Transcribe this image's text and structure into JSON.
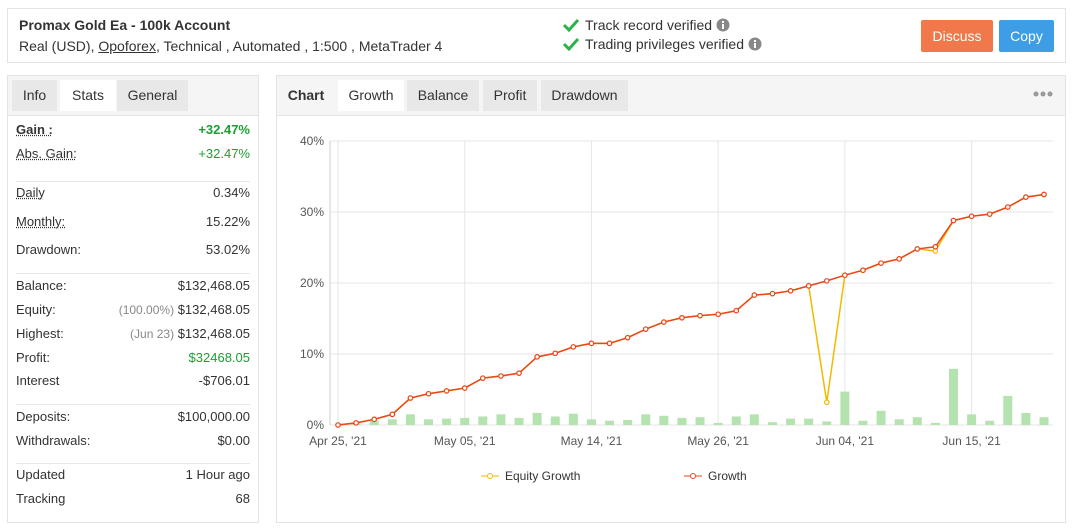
{
  "header": {
    "title": "Promax Gold Ea - 100k Account",
    "account_prefix": "Real (USD), ",
    "broker": "Opoforex",
    "account_suffix": ", Technical , Automated , 1:500 , MetaTrader 4",
    "verified": [
      "Track record verified",
      "Trading privileges verified"
    ],
    "buttons": [
      "Discuss",
      "Copy"
    ]
  },
  "info_tabs": [
    "Info",
    "Stats",
    "General"
  ],
  "stats": [
    [
      {
        "label": "Gain :",
        "value": "+32.47%"
      },
      {
        "label": "Abs. Gain:",
        "value": "+32.47%"
      }
    ],
    [
      {
        "label": "Daily",
        "value": "0.34%"
      },
      {
        "label": "Monthly:",
        "value": "15.22%"
      },
      {
        "label": "Drawdown:",
        "value": "53.02%"
      }
    ],
    [
      {
        "label": "Balance:",
        "value": "$132,468.05"
      },
      {
        "label": "Equity:",
        "note": "(100.00%)",
        "value": "$132,468.05"
      },
      {
        "label": "Highest:",
        "note": "(Jun 23)",
        "value": "$132,468.05"
      },
      {
        "label": "Profit:",
        "value": "$32468.05"
      },
      {
        "label": "Interest",
        "value": "-$706.01"
      }
    ],
    [
      {
        "label": "Deposits:",
        "value": "$100,000.00"
      },
      {
        "label": "Withdrawals:",
        "value": "$0.00"
      }
    ],
    [
      {
        "label": "Updated",
        "value": "1 Hour ago"
      },
      {
        "label": "Tracking",
        "value": "68"
      }
    ]
  ],
  "chart_tabs": [
    "Chart",
    "Growth",
    "Balance",
    "Profit",
    "Drawdown"
  ],
  "chart_data": {
    "type": "line",
    "categories": [
      "Apr 25, '21",
      null,
      null,
      null,
      null,
      null,
      null,
      "May 05, '21",
      null,
      null,
      null,
      null,
      null,
      null,
      "May 14, '21",
      null,
      null,
      null,
      null,
      null,
      null,
      "May 26, '21",
      null,
      null,
      null,
      null,
      null,
      null,
      "Jun 04, '21",
      null,
      null,
      null,
      null,
      null,
      null,
      "Jun 15, '21",
      null,
      null,
      null,
      null
    ],
    "series": [
      {
        "name": "Equity Growth",
        "color": "#f5b800",
        "values": [
          0,
          0.3,
          0.8,
          1.5,
          3.8,
          4.4,
          4.8,
          5.2,
          6.6,
          6.9,
          7.3,
          9.6,
          10.1,
          11.0,
          11.5,
          11.5,
          12.3,
          13.5,
          14.5,
          15.1,
          15.4,
          15.6,
          16.1,
          18.3,
          18.5,
          18.9,
          19.6,
          3.2,
          21.1,
          21.8,
          22.8,
          23.4,
          24.8,
          24.5,
          28.8,
          29.4,
          29.7,
          30.7,
          32.1,
          32.47
        ]
      },
      {
        "name": "Growth",
        "color": "#e8461e",
        "values": [
          0,
          0.3,
          0.8,
          1.5,
          3.8,
          4.4,
          4.8,
          5.2,
          6.6,
          6.9,
          7.3,
          9.6,
          10.1,
          11.0,
          11.5,
          11.5,
          12.3,
          13.5,
          14.5,
          15.1,
          15.4,
          15.6,
          16.1,
          18.3,
          18.5,
          18.9,
          19.6,
          20.3,
          21.1,
          21.8,
          22.8,
          23.4,
          24.8,
          25.1,
          28.8,
          29.4,
          29.7,
          30.7,
          32.1,
          32.47
        ]
      }
    ],
    "bars": {
      "color": "#b5e3b0",
      "values": [
        0,
        0.3,
        0.6,
        0.8,
        1.5,
        0.8,
        0.9,
        1.0,
        1.2,
        1.5,
        1.0,
        1.7,
        1.2,
        1.6,
        0.8,
        0.6,
        0.7,
        1.5,
        1.3,
        1.0,
        1.1,
        0.3,
        1.2,
        1.5,
        0.4,
        0.9,
        0.9,
        0.5,
        4.7,
        0.6,
        2.0,
        0.8,
        1.1,
        0.3,
        7.9,
        1.5,
        0.6,
        4.1,
        1.7,
        1.1
      ]
    },
    "ylim": [
      0,
      40
    ],
    "yticks": [
      {
        "value": 0,
        "label": "0%"
      },
      {
        "value": 10,
        "label": "10%"
      },
      {
        "value": 20,
        "label": "20%"
      },
      {
        "value": 30,
        "label": "30%"
      },
      {
        "value": 40,
        "label": "40%"
      }
    ],
    "grid": true
  }
}
